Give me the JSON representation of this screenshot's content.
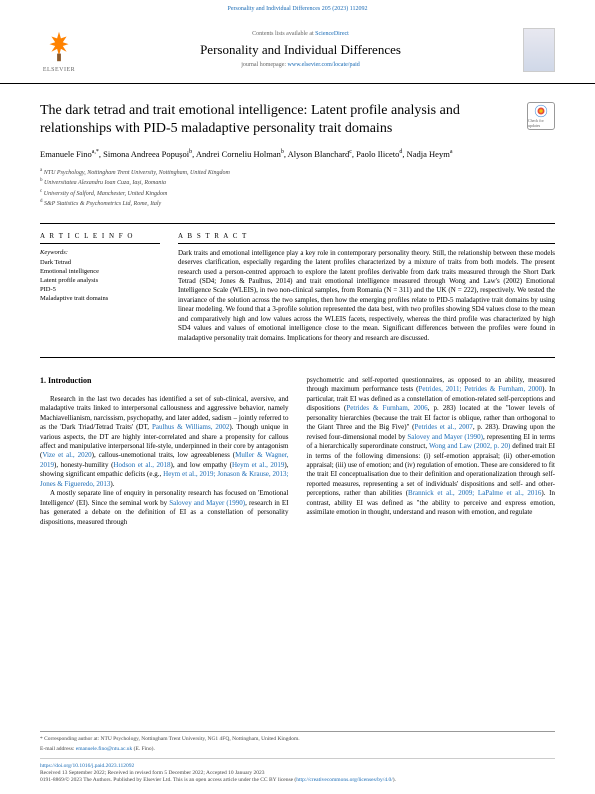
{
  "top_citation": "Personality and Individual Differences 205 (2023) 112092",
  "header": {
    "elsevier": "ELSEVIER",
    "contents_prefix": "Contents lists available at ",
    "contents_link": "ScienceDirect",
    "journal_name": "Personality and Individual Differences",
    "homepage_prefix": "journal homepage: ",
    "homepage_link": "www.elsevier.com/locate/paid"
  },
  "title": "The dark tetrad and trait emotional intelligence: Latent profile analysis and relationships with PID-5 maladaptive personality trait domains",
  "checkmark_label": "Check for updates",
  "authors_html": "Emanuele Fino<sup>a,*</sup>, Simona Andreea Popușoi<sup>b</sup>, Andrei Corneliu Holman<sup>b</sup>, Alyson Blanchard<sup>c</sup>, Paolo Iliceto<sup>d</sup>, Nadja Heym<sup>a</sup>",
  "affiliations": [
    "a NTU Psychology, Nottingham Trent University, Nottingham, United Kingdom",
    "b Universitatea Alexandru Ioan Cuza, Iași, Romania",
    "c University of Salford, Manchester, United Kingdom",
    "d S&P Statistics & Psychometrics Ltd, Rome, Italy"
  ],
  "labels": {
    "article_info": "A R T I C L E  I N F O",
    "abstract": "A B S T R A C T",
    "keywords": "Keywords:"
  },
  "keywords": "Dark Tetrad\nEmotional intelligence\nLatent profile analysis\nPID-5\nMaladaptive trait domains",
  "abstract": "Dark traits and emotional intelligence play a key role in contemporary personality theory. Still, the relationship between these models deserves clarification, especially regarding the latent profiles characterized by a mixture of traits from both models. The present research used a person-centred approach to explore the latent profiles derivable from dark traits measured through the Short Dark Tetrad (SD4; Jones & Paulhus, 2014) and trait emotional intelligence measured through Wong and Law's (2002) Emotional Intelligence Scale (WLEIS), in two non-clinical samples, from Romania (N = 311) and the UK (N = 222), respectively. We tested the invariance of the solution across the two samples, then how the emerging profiles relate to PID-5 maladaptive trait domains by using linear modeling. We found that a 3-profile solution represented the data best, with two profiles showing SD4 values close to the mean and comparatively high and low values across the WLEIS facets, respectively, whereas the third profile was characterized by high SD4 values and values of emotional intelligence close to the mean. Significant differences between the profiles were found in maladaptive personality trait domains. Implications for theory and research are discussed.",
  "intro_heading": "1. Introduction",
  "col1_p1": "Research in the last two decades has identified a set of sub-clinical, aversive, and maladaptive traits linked to interpersonal callousness and aggressive behavior, namely Machiavellianism, narcissism, psychopathy, and later added, sadism – jointly referred to as the 'Dark Triad/Tetrad Traits' (DT, <span class=\"cite\">Paulhus & Williams, 2002</span>). Though unique in various aspects, the DT are highly inter-correlated and share a propensity for callous affect and manipulative interpersonal life-style, underpinned in their core by antagonism (<span class=\"cite\">Vize et al., 2020</span>), callous-unemotional traits, low agreeableness (<span class=\"cite\">Muller & Wagner, 2019</span>), honesty-humility (<span class=\"cite\">Hodson et al., 2018</span>), and low empathy (<span class=\"cite\">Heym et al., 2019</span>), showing significant empathic deficits (e.g., <span class=\"cite\">Heym et al., 2019; Jonason & Krause, 2013; Jones & Figueredo, 2013</span>).",
  "col1_p2": "A mostly separate line of enquiry in personality research has focused on 'Emotional Intelligence' (EI). Since the seminal work by <span class=\"cite\">Salovey and Mayer (1990)</span>, research in EI has generated a debate on the definition of EI as a constellation of personality dispositions, measured through",
  "col2_p1": "psychometric and self-reported questionnaires, as opposed to an ability, measured through maximum performance tests (<span class=\"cite\">Petrides, 2011; Petrides & Furnham, 2000</span>). In particular, trait EI was defined as a constellation of emotion-related self-perceptions and dispositions (<span class=\"cite\">Petrides & Furnham, 2006</span>, p. 283) located at the \"lower levels of personality hierarchies (because the trait EI factor is oblique, rather than orthogonal to the Giant Three and the Big Five)\" (<span class=\"cite\">Petrides et al., 2007</span>, p. 283). Drawing upon the revised four-dimensional model by <span class=\"cite\">Salovey and Mayer (1990)</span>, representing EI in terms of a hierarchically superordinate construct, <span class=\"cite\">Wong and Law (2002, p. 20)</span> defined trait EI in terms of the following dimensions: (i) self-emotion appraisal; (ii) other-emotion appraisal; (iii) use of emotion; and (iv) regulation of emotion. These are considered to fit the trait EI conceptualisation due to their definition and operationalization through self-reported measures, representing a set of individuals' dispositions and self- and other-perceptions, rather than abilities (<span class=\"cite\">Brannick et al., 2009; LaPalme et al., 2016</span>). In contrast, ability EI was defined as \"the ability to perceive and express emotion, assimilate emotion in thought, understand and reason with emotion, and regulate",
  "footer": {
    "corresp": "* Corresponding author at: NTU Psychology, Nottingham Trent University, NG1 4FQ, Nottingham, United Kingdom.",
    "email_label": "E-mail address: ",
    "email": "emanuele.fino@ntu.ac.uk",
    "email_suffix": " (E. Fino).",
    "doi": "https://doi.org/10.1016/j.paid.2023.112092",
    "received": "Received 13 September 2022; Received in revised form 5 December 2022; Accepted 10 January 2023",
    "copyright": "0191-8869/© 2023 The Authors. Published by Elsevier Ltd. This is an open access article under the CC BY license (",
    "cc_link": "http://creativecommons.org/licenses/by/4.0/",
    "copyright_end": ")."
  }
}
